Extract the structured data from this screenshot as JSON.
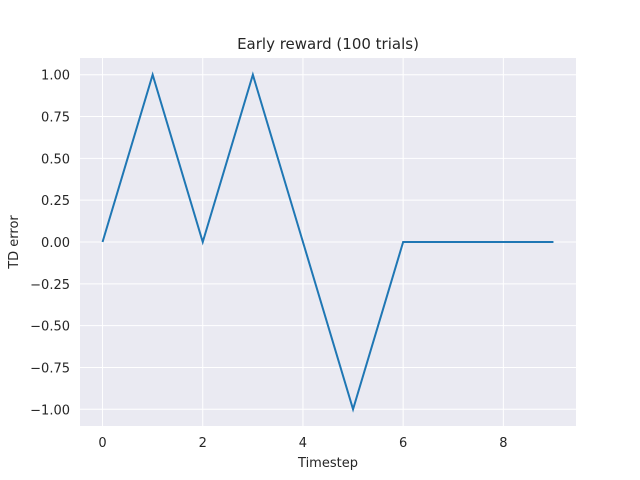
{
  "chart_data": {
    "type": "line",
    "title": "Early reward (100 trials)",
    "xlabel": "Timestep",
    "ylabel": "TD error",
    "x": [
      0,
      1,
      2,
      3,
      4,
      5,
      6,
      7,
      8,
      9
    ],
    "series": [
      {
        "values": [
          0,
          1,
          0,
          1,
          0,
          -1,
          0,
          0,
          0,
          0
        ],
        "color": "#1f77b4"
      }
    ],
    "xlim": [
      -0.45,
      9.45
    ],
    "ylim": [
      -1.1,
      1.1
    ],
    "xticks": [
      0,
      2,
      4,
      6,
      8
    ],
    "xtick_labels": [
      "0",
      "2",
      "4",
      "6",
      "8"
    ],
    "yticks": [
      -1.0,
      -0.75,
      -0.5,
      -0.25,
      0.0,
      0.25,
      0.5,
      0.75,
      1.0
    ],
    "ytick_labels": [
      "−1.00",
      "−0.75",
      "−0.50",
      "−0.25",
      "0.00",
      "0.25",
      "0.50",
      "0.75",
      "1.00"
    ],
    "grid": true,
    "background": "#eaeaf2"
  }
}
